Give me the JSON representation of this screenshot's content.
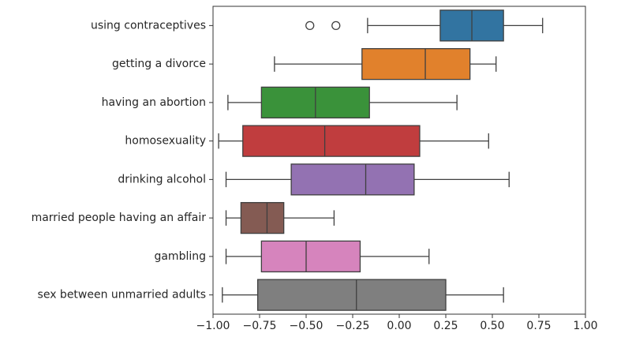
{
  "chart_data": {
    "type": "boxplot",
    "orientation": "horizontal",
    "xlim": [
      -1.0,
      1.0
    ],
    "x_ticks": [
      "−1.00",
      "−0.75",
      "−0.50",
      "−0.25",
      "0.00",
      "0.25",
      "0.50",
      "0.75",
      "1.00"
    ],
    "x_tick_values": [
      -1.0,
      -0.75,
      -0.5,
      -0.25,
      0.0,
      0.25,
      0.5,
      0.75,
      1.0
    ],
    "grid": false,
    "categories": [
      "using contraceptives",
      "getting a divorce",
      "having an abortion",
      "homosexuality",
      "drinking alcohol",
      "married people having an affair",
      "gambling",
      "sex between unmarried adults"
    ],
    "boxes": [
      {
        "whislo": -0.17,
        "q1": 0.22,
        "med": 0.39,
        "q3": 0.56,
        "whishi": 0.77,
        "fliers": [
          -0.48,
          -0.34
        ],
        "color": "#3274a1"
      },
      {
        "whislo": -0.67,
        "q1": -0.2,
        "med": 0.14,
        "q3": 0.38,
        "whishi": 0.52,
        "fliers": [],
        "color": "#e1812c"
      },
      {
        "whislo": -0.92,
        "q1": -0.74,
        "med": -0.45,
        "q3": -0.16,
        "whishi": 0.31,
        "fliers": [],
        "color": "#3a923a"
      },
      {
        "whislo": -0.97,
        "q1": -0.84,
        "med": -0.4,
        "q3": 0.11,
        "whishi": 0.48,
        "fliers": [],
        "color": "#c03d3e"
      },
      {
        "whislo": -0.93,
        "q1": -0.58,
        "med": -0.18,
        "q3": 0.08,
        "whishi": 0.59,
        "fliers": [],
        "color": "#9372b2"
      },
      {
        "whislo": -0.93,
        "q1": -0.85,
        "med": -0.71,
        "q3": -0.62,
        "whishi": -0.35,
        "fliers": [],
        "color": "#845b53"
      },
      {
        "whislo": -0.93,
        "q1": -0.74,
        "med": -0.5,
        "q3": -0.21,
        "whishi": 0.16,
        "fliers": [],
        "color": "#d684bd"
      },
      {
        "whislo": -0.95,
        "q1": -0.76,
        "med": -0.23,
        "q3": 0.25,
        "whishi": 0.56,
        "fliers": [],
        "color": "#7f7f7f"
      }
    ]
  }
}
